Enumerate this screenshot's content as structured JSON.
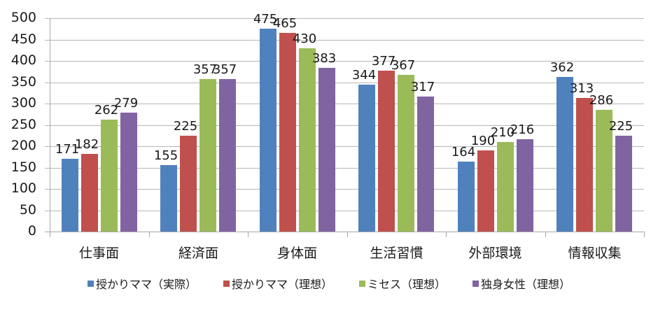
{
  "chart_data": {
    "type": "bar",
    "title": "",
    "xlabel": "",
    "ylabel": "",
    "ylim": [
      0,
      500
    ],
    "yticks": [
      0,
      50,
      100,
      150,
      200,
      250,
      300,
      350,
      400,
      450,
      500
    ],
    "grid": true,
    "legend_position": "bottom",
    "categories": [
      "仕事面",
      "経済面",
      "身体面",
      "生活習慣",
      "外部環境",
      "情報収集"
    ],
    "series": [
      {
        "name": "授かりママ（実際）",
        "color": "#4f81bd",
        "values": [
          171,
          155,
          475,
          344,
          164,
          362
        ]
      },
      {
        "name": "授かりママ（理想）",
        "color": "#c0504d",
        "values": [
          182,
          225,
          465,
          377,
          190,
          313
        ]
      },
      {
        "name": "ミセス（理想）",
        "color": "#9bbb59",
        "values": [
          262,
          357,
          430,
          367,
          210,
          286
        ]
      },
      {
        "name": "独身女性（理想）",
        "color": "#8064a2",
        "values": [
          279,
          357,
          383,
          317,
          216,
          225
        ]
      }
    ]
  }
}
